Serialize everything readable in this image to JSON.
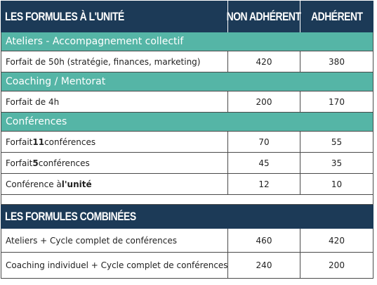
{
  "header": {
    "col1": "LES FORMULES À L'UNITÉ",
    "col2": "NON ADHÉRENT",
    "col3": "ADHÉRENT"
  },
  "sections": [
    {
      "title": "Ateliers - Accompagnement collectif",
      "rows": [
        {
          "label_pre": "Forfait de 50h (stratégie, finances, marketing)",
          "label_bold": "",
          "label_post": "",
          "non_adherent": "420",
          "adherent": "380"
        }
      ]
    },
    {
      "title": "Coaching / Mentorat",
      "rows": [
        {
          "label_pre": "Forfait de 4h",
          "label_bold": "",
          "label_post": "",
          "non_adherent": "200",
          "adherent": "170"
        }
      ]
    },
    {
      "title": "Conférences",
      "rows": [
        {
          "label_pre": "Forfait ",
          "label_bold": "11",
          "label_post": " conférences",
          "non_adherent": "70",
          "adherent": "55"
        },
        {
          "label_pre": "Forfait ",
          "label_bold": "5",
          "label_post": " conférences",
          "non_adherent": "45",
          "adherent": "35"
        },
        {
          "label_pre": "Conférence à ",
          "label_bold": "l'unité",
          "label_post": "",
          "non_adherent": "12",
          "adherent": "10"
        }
      ]
    }
  ],
  "combined": {
    "title": "LES FORMULES COMBINÉES",
    "rows": [
      {
        "label": "Ateliers + Cycle complet de conférences",
        "non_adherent": "460",
        "adherent": "420"
      },
      {
        "label": "Coaching individuel + Cycle complet de conférences",
        "non_adherent": "240",
        "adherent": "200"
      }
    ]
  },
  "colors": {
    "header_bg": "#1c3a57",
    "section_bg": "#55b5a6"
  }
}
